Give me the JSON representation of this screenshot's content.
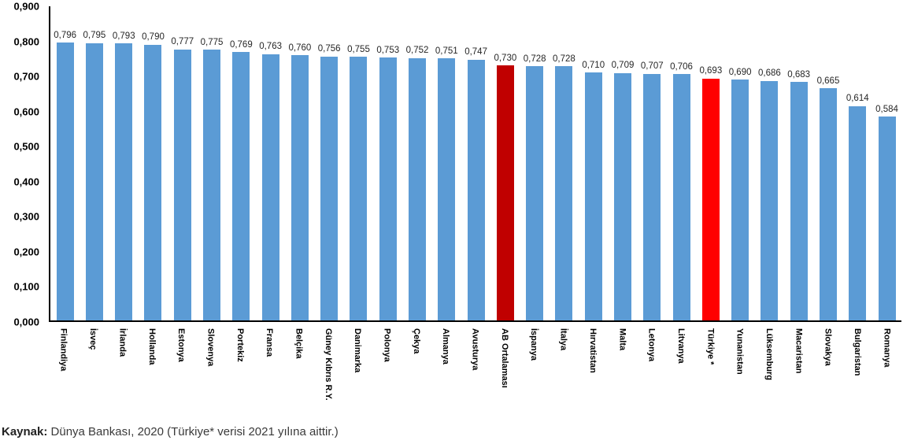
{
  "chart_data": {
    "type": "bar",
    "categories": [
      "Finlandiya",
      "İsveç",
      "İrlanda",
      "Hollanda",
      "Estonya",
      "Slovenya",
      "Portekiz",
      "Fransa",
      "Belçika",
      "Güney Kıbrıs R.Y.",
      "Danimarka",
      "Polonya",
      "Çekya",
      "Almanya",
      "Avusturya",
      "AB Ortalaması",
      "İspanya",
      "İtalya",
      "Hırvatistan",
      "Malta",
      "Letonya",
      "Litvanya",
      "Türkiye *",
      "Yunanistan",
      "Lüksemburg",
      "Macaristan",
      "Slovakya",
      "Bulgaristan",
      "Romanya"
    ],
    "values": [
      0.796,
      0.795,
      0.793,
      0.79,
      0.777,
      0.775,
      0.769,
      0.763,
      0.76,
      0.756,
      0.755,
      0.753,
      0.752,
      0.751,
      0.747,
      0.73,
      0.728,
      0.728,
      0.71,
      0.709,
      0.707,
      0.706,
      0.693,
      0.69,
      0.686,
      0.683,
      0.665,
      0.614,
      0.584
    ],
    "value_labels": [
      "0,796",
      "0,795",
      "0,793",
      "0,790",
      "0,777",
      "0,775",
      "0,769",
      "0,763",
      "0,760",
      "0,756",
      "0,755",
      "0,753",
      "0,752",
      "0,751",
      "0,747",
      "0,730",
      "0,728",
      "0,728",
      "0,710",
      "0,709",
      "0,707",
      "0,706",
      "0,693",
      "0,690",
      "0,686",
      "0,683",
      "0,665",
      "0,614",
      "0,584"
    ],
    "y_ticks": [
      "0,900",
      "0,800",
      "0,700",
      "0,600",
      "0,500",
      "0,400",
      "0,300",
      "0,200",
      "0,100",
      "0,000"
    ],
    "ylim": [
      0,
      0.9
    ],
    "grid": false,
    "legend": "none",
    "title": "",
    "xlabel": "",
    "ylabel": "",
    "bar_color_default": "#5B9BD5",
    "bar_color_overrides": {
      "15": "#C00000",
      "22": "#FF0000"
    },
    "highlighted_bars": [
      {
        "category": "AB Ortalaması",
        "color": "#C00000"
      },
      {
        "category": "Türkiye *",
        "color": "#FF0000"
      }
    ]
  },
  "footer": {
    "source_label": "Kaynak:",
    "source_text": " Dünya Bankası, 2020 (Türkiye* verisi 2021 yılına aittir.)"
  }
}
